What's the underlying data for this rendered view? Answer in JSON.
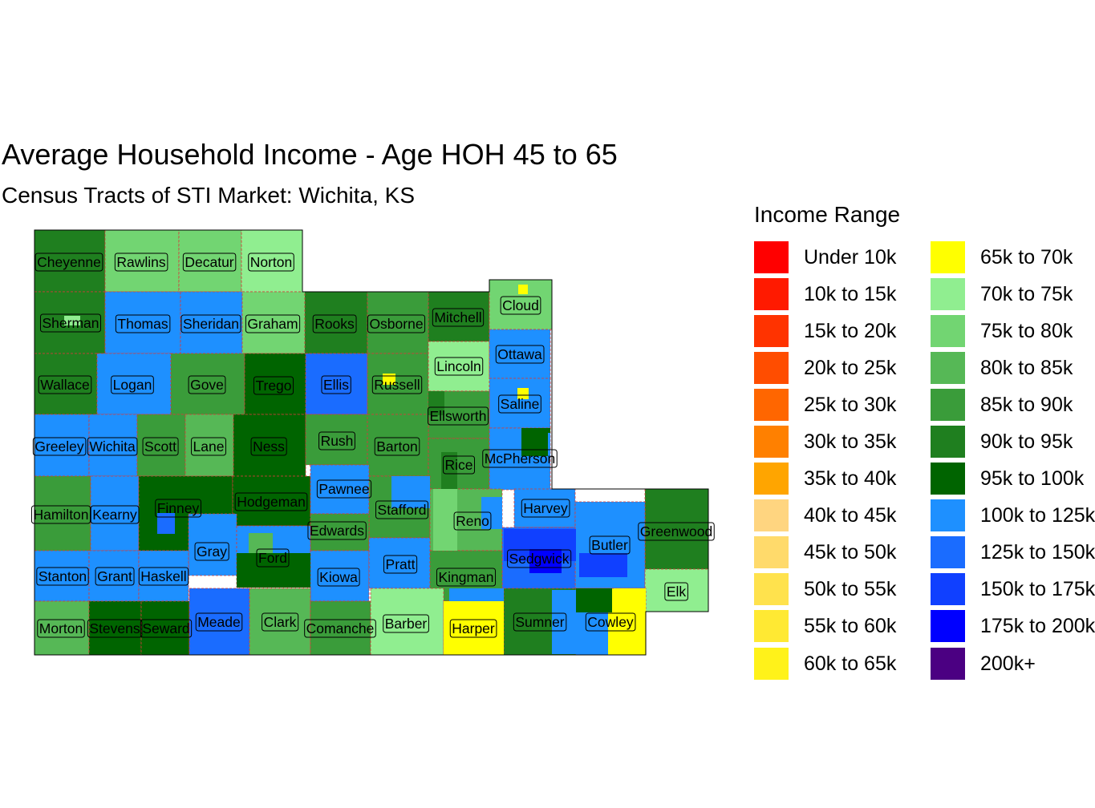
{
  "title": "Average Household Income - Age HOH 45 to 65",
  "subtitle": "Census Tracts of STI Market: Wichita, KS",
  "legend": {
    "title": "Income Range",
    "items": [
      {
        "label": "Under 10k",
        "color": "#FF0000"
      },
      {
        "label": "10k to 15k",
        "color": "#FF1A00"
      },
      {
        "label": "15k to 20k",
        "color": "#FF3300"
      },
      {
        "label": "20k to 25k",
        "color": "#FF4D00"
      },
      {
        "label": "25k to 30k",
        "color": "#FF6600"
      },
      {
        "label": "30k to 35k",
        "color": "#FF8000"
      },
      {
        "label": "35k to 40k",
        "color": "#FFA500"
      },
      {
        "label": "40k to 45k",
        "color": "#FFD580"
      },
      {
        "label": "45k to 50k",
        "color": "#FFDA6B"
      },
      {
        "label": "50k to 55k",
        "color": "#FFE24D"
      },
      {
        "label": "55k to 60k",
        "color": "#FFE933"
      },
      {
        "label": "60k to 65k",
        "color": "#FFF21A"
      },
      {
        "label": "65k to 70k",
        "color": "#FFFF00"
      },
      {
        "label": "70k to 75k",
        "color": "#90EE90"
      },
      {
        "label": "75k to 80k",
        "color": "#72D572"
      },
      {
        "label": "80k to 85k",
        "color": "#56B856"
      },
      {
        "label": "85k to 90k",
        "color": "#3A9C3A"
      },
      {
        "label": "90k to 95k",
        "color": "#1F7F1F"
      },
      {
        "label": "95k to 100k",
        "color": "#006400"
      },
      {
        "label": "100k to 125k",
        "color": "#1E90FF"
      },
      {
        "label": "125k to 150k",
        "color": "#1A6CFF"
      },
      {
        "label": "150k to 175k",
        "color": "#1040FF"
      },
      {
        "label": "175k to 200k",
        "color": "#0000FF"
      },
      {
        "label": "200k+",
        "color": "#4B0082"
      }
    ]
  },
  "counties": [
    {
      "name": "Cheyenne",
      "income": "90k to 95k"
    },
    {
      "name": "Rawlins",
      "income": "75k to 80k"
    },
    {
      "name": "Decatur",
      "income": "75k to 80k"
    },
    {
      "name": "Norton",
      "income": "70k to 75k"
    },
    {
      "name": "Sherman",
      "income": "90k to 95k"
    },
    {
      "name": "Thomas",
      "income": "100k to 125k"
    },
    {
      "name": "Sheridan",
      "income": "100k to 125k"
    },
    {
      "name": "Graham",
      "income": "75k to 80k"
    },
    {
      "name": "Rooks",
      "income": "90k to 95k"
    },
    {
      "name": "Osborne",
      "income": "85k to 90k"
    },
    {
      "name": "Mitchell",
      "income": "90k to 95k"
    },
    {
      "name": "Cloud",
      "income": "75k to 80k"
    },
    {
      "name": "Wallace",
      "income": "90k to 95k"
    },
    {
      "name": "Logan",
      "income": "100k to 125k"
    },
    {
      "name": "Gove",
      "income": "85k to 90k"
    },
    {
      "name": "Trego",
      "income": "95k to 100k"
    },
    {
      "name": "Ellis",
      "income": "125k to 150k"
    },
    {
      "name": "Russell",
      "income": "85k to 90k"
    },
    {
      "name": "Lincoln",
      "income": "70k to 75k"
    },
    {
      "name": "Ottawa",
      "income": "100k to 125k"
    },
    {
      "name": "Saline",
      "income": "100k to 125k"
    },
    {
      "name": "Ellsworth",
      "income": "85k to 90k"
    },
    {
      "name": "Greeley",
      "income": "100k to 125k"
    },
    {
      "name": "Wichita",
      "income": "100k to 125k"
    },
    {
      "name": "Scott",
      "income": "85k to 90k"
    },
    {
      "name": "Lane",
      "income": "80k to 85k"
    },
    {
      "name": "Ness",
      "income": "95k to 100k"
    },
    {
      "name": "Rush",
      "income": "85k to 90k"
    },
    {
      "name": "Barton",
      "income": "85k to 90k"
    },
    {
      "name": "Rice",
      "income": "85k to 90k"
    },
    {
      "name": "McPherson",
      "income": "100k to 125k"
    },
    {
      "name": "Hamilton",
      "income": "85k to 90k"
    },
    {
      "name": "Kearny",
      "income": "100k to 125k"
    },
    {
      "name": "Finney",
      "income": "95k to 100k"
    },
    {
      "name": "Hodgeman",
      "income": "95k to 100k"
    },
    {
      "name": "Pawnee",
      "income": "100k to 125k"
    },
    {
      "name": "Stafford",
      "income": "85k to 90k"
    },
    {
      "name": "Reno",
      "income": "80k to 85k"
    },
    {
      "name": "Harvey",
      "income": "100k to 125k"
    },
    {
      "name": "Greenwood",
      "income": "90k to 95k"
    },
    {
      "name": "Edwards",
      "income": "85k to 90k"
    },
    {
      "name": "Gray",
      "income": "100k to 125k"
    },
    {
      "name": "Ford",
      "income": "100k to 125k"
    },
    {
      "name": "Butler",
      "income": "100k to 125k"
    },
    {
      "name": "Sedgwick",
      "income": "125k to 150k"
    },
    {
      "name": "Stanton",
      "income": "100k to 125k"
    },
    {
      "name": "Grant",
      "income": "100k to 125k"
    },
    {
      "name": "Haskell",
      "income": "100k to 125k"
    },
    {
      "name": "Kiowa",
      "income": "100k to 125k"
    },
    {
      "name": "Pratt",
      "income": "100k to 125k"
    },
    {
      "name": "Kingman",
      "income": "85k to 90k"
    },
    {
      "name": "Elk",
      "income": "70k to 75k"
    },
    {
      "name": "Morton",
      "income": "80k to 85k"
    },
    {
      "name": "Stevens",
      "income": "95k to 100k"
    },
    {
      "name": "Seward",
      "income": "95k to 100k"
    },
    {
      "name": "Meade",
      "income": "125k to 150k"
    },
    {
      "name": "Clark",
      "income": "80k to 85k"
    },
    {
      "name": "Comanche",
      "income": "85k to 90k"
    },
    {
      "name": "Barber",
      "income": "70k to 75k"
    },
    {
      "name": "Harper",
      "income": "65k to 70k"
    },
    {
      "name": "Sumner",
      "income": "90k to 95k"
    },
    {
      "name": "Cowley",
      "income": "65k to 70k"
    }
  ]
}
